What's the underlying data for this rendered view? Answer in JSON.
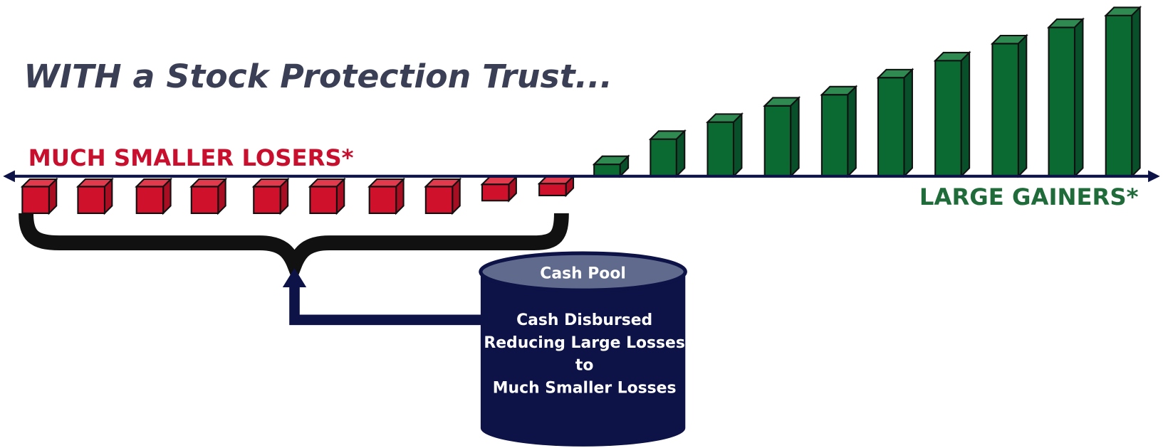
{
  "title": "WITH a Stock Protection Trust...",
  "losers_label": "MUCH SMALLER LOSERS*",
  "gainers_label": "LARGE GAINERS*",
  "cylinder": {
    "title": "Cash Pool",
    "lines": [
      "Cash Disbursed",
      "Reducing Large Losses",
      "to",
      "Much Smaller Losses"
    ]
  }
}
